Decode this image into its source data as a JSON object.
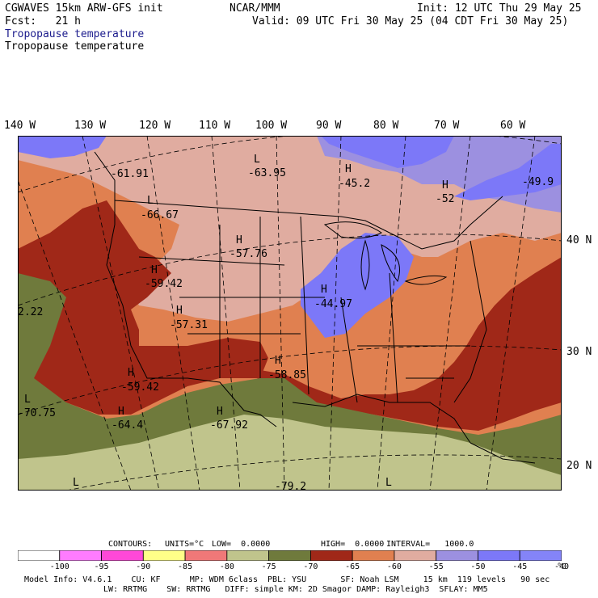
{
  "header": {
    "model_line": "CGWAVES 15km ARW-GFS init",
    "org": "NCAR/MMM",
    "init": "Init: 12 UTC Thu 29 May 25",
    "fcst": "Fcst:   21 h",
    "valid": "Valid: 09 UTC Fri 30 May 25 (04 CDT Fri 30 May 25)",
    "field_title_1": "Tropopause temperature",
    "field_title_2": "Tropopause temperature"
  },
  "longitude_labels": [
    "140 W",
    "130 W",
    "120 W",
    "110 W",
    "100 W",
    "90 W",
    "80 W",
    "70 W",
    "60 W"
  ],
  "latitude_labels": [
    "40 N",
    "30 N",
    "20 N"
  ],
  "extrema": [
    {
      "type": "H",
      "value": "-45.2"
    },
    {
      "type": "H",
      "value": "-52"
    },
    {
      "type": "L",
      "value": "-63.95"
    },
    {
      "type": "L",
      "value": "-66.67"
    },
    {
      "type": "H",
      "value": "-57.76"
    },
    {
      "type": "H",
      "value": "-59.42"
    },
    {
      "type": "H",
      "value": "-57.31"
    },
    {
      "type": "H",
      "value": "-44.97"
    },
    {
      "type": "H",
      "value": "-58.85"
    },
    {
      "type": "H",
      "value": "-59.42"
    },
    {
      "type": "L",
      "value": "-70.75"
    },
    {
      "type": "H",
      "value": "-64.4"
    },
    {
      "type": "H",
      "value": "-67.92"
    },
    {
      "type": "",
      "value": "-79.2"
    },
    {
      "type": "L",
      "value": ""
    },
    {
      "type": "L",
      "value": ""
    },
    {
      "type": "",
      "value": "-61.91"
    },
    {
      "type": "",
      "value": "-49.9"
    },
    {
      "type": "",
      "value": "2.22"
    }
  ],
  "contour_info": {
    "contours": "CONTOURS:",
    "units": "UNITS=°C",
    "low": "LOW=  0.0000",
    "high": "HIGH=  0.0000",
    "interval": "INTERVAL=   1000.0"
  },
  "colorbar": {
    "ticks": [
      "-100",
      "-95",
      "-90",
      "-85",
      "-80",
      "-75",
      "-70",
      "-65",
      "-60",
      "-55",
      "-50",
      "-45",
      "-40"
    ],
    "unit": "°C",
    "colors": [
      "#ffffff",
      "#ff7cff",
      "#ff48d8",
      "#ffff88",
      "#f07878",
      "#c0c48c",
      "#6f7a3c",
      "#a02818",
      "#e08050",
      "#e0aca0",
      "#9c90e0",
      "#7c78f8",
      "#8484f8"
    ]
  },
  "model_info": {
    "line1": "Model Info: V4.6.1    CU: KF      MP: WDM 6class  PBL: YSU       SF: Noah LSM     15 km  119 levels   90 sec",
    "line2": "LW: RRTMG    SW: RRTMG   DIFF: simple KM: 2D Smagor DAMP: Rayleigh3  SFLAY: MM5"
  },
  "palette": {
    "deep_blue": "#7c78f8",
    "purple": "#9c90e0",
    "pink": "#e0aca0",
    "orange": "#e08050",
    "red": "#a02818",
    "olive_dark": "#6f7a3c",
    "olive_light": "#c0c48c",
    "boundary": "#000000"
  }
}
